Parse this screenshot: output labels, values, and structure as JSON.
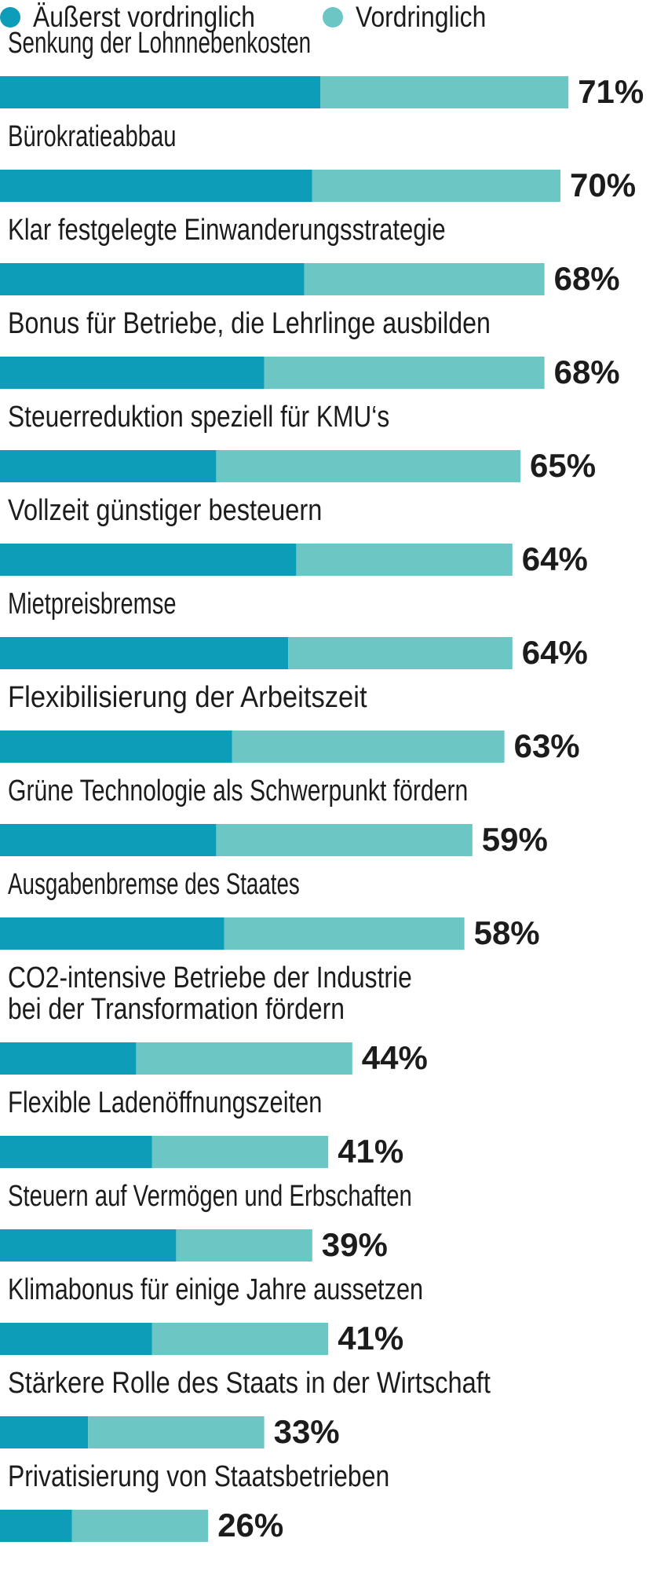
{
  "legend": {
    "series1": "Äußerst vordringlich",
    "series2": "Vordringlich"
  },
  "colors": {
    "series1": "#0e9db8",
    "series2": "#6cc6c3"
  },
  "chart_data": {
    "type": "bar",
    "orientation": "horizontal",
    "stacked": true,
    "legend_position": "top-left",
    "grid": false,
    "xlim": [
      0,
      100
    ],
    "categories": [
      [
        "Senkung der Lohnnebenkosten"
      ],
      [
        "Bürokratieabbau"
      ],
      [
        "Klar festgelegte Einwanderungsstrategie"
      ],
      [
        "Bonus für Betriebe, die Lehrlinge ausbilden"
      ],
      [
        "Steuerreduktion speziell für KMU‘s"
      ],
      [
        "Vollzeit günstiger besteuern"
      ],
      [
        "Mietpreisbremse"
      ],
      [
        "Flexibilisierung der Arbeitszeit"
      ],
      [
        "Grüne Technologie als Schwerpunkt fördern"
      ],
      [
        "Ausgabenbremse des Staates"
      ],
      [
        "CO2-intensive Betriebe der Industrie",
        "bei der Transformation fördern"
      ],
      [
        "Flexible Ladenöffnungszeiten"
      ],
      [
        "Steuern auf Vermögen und Erbschaften"
      ],
      [
        "Klimabonus für einige Jahre aussetzen"
      ],
      [
        "Stärkere Rolle des Staats in der Wirtschaft"
      ],
      [
        "Privatisierung von Staatsbetrieben"
      ]
    ],
    "series": [
      {
        "name": "Äußerst vordringlich",
        "values": [
          40,
          39,
          38,
          33,
          27,
          37,
          36,
          29,
          27,
          28,
          17,
          19,
          22,
          19,
          11,
          9
        ]
      },
      {
        "name": "Vordringlich",
        "values": [
          31,
          31,
          30,
          35,
          38,
          27,
          28,
          34,
          32,
          30,
          27,
          22,
          17,
          22,
          22,
          17
        ]
      }
    ],
    "total_labels": [
      "71%",
      "70%",
      "68%",
      "68%",
      "65%",
      "64%",
      "64%",
      "63%",
      "59%",
      "58%",
      "44%",
      "41%",
      "39%",
      "41%",
      "33%",
      "26%"
    ]
  }
}
